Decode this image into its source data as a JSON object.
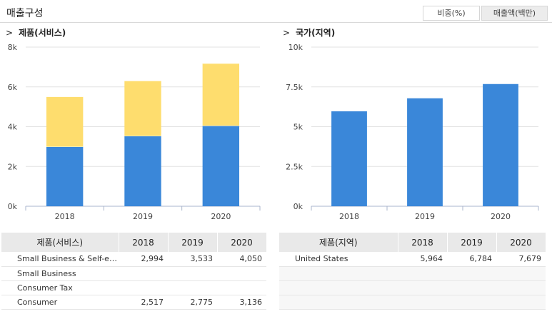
{
  "header": {
    "title": "매출구성",
    "toggle_pct": "비중(%)",
    "toggle_amount": "매출액(백만)"
  },
  "left_section": {
    "title": "제품(서비스)"
  },
  "right_section": {
    "title": "국가(지역)"
  },
  "chevron_glyph": ">",
  "colors": {
    "blue": "#3a87d9",
    "yellow": "#fedd6e",
    "grid": "#e2e2e2",
    "axis": "#aab6cc"
  },
  "chart_data": [
    {
      "type": "bar",
      "stacked": true,
      "categories": [
        "2018",
        "2019",
        "2020"
      ],
      "series": [
        {
          "values": [
            2994,
            3533,
            4050
          ],
          "color": "#3a87d9"
        },
        {
          "values": [
            2517,
            2775,
            3136
          ],
          "color": "#fedd6e"
        }
      ],
      "ylim": [
        0,
        8000
      ],
      "yticks": [
        0,
        2000,
        4000,
        6000,
        8000
      ],
      "ytick_labels": [
        "0k",
        "2k",
        "4k",
        "6k",
        "8k"
      ],
      "grid": true
    },
    {
      "type": "bar",
      "categories": [
        "2018",
        "2019",
        "2020"
      ],
      "series": [
        {
          "values": [
            5964,
            6784,
            7679
          ],
          "color": "#3a87d9"
        }
      ],
      "ylim": [
        0,
        10000
      ],
      "yticks": [
        0,
        2500,
        5000,
        7500,
        10000
      ],
      "ytick_labels": [
        "0k",
        "2.5k",
        "5k",
        "7.5k",
        "10k"
      ],
      "grid": true
    }
  ],
  "left_table": {
    "headers": [
      "제품(서비스)",
      "2018",
      "2019",
      "2020"
    ],
    "rows": [
      [
        "Small Business & Self-e…",
        "2,994",
        "3,533",
        "4,050"
      ],
      [
        "Small Business",
        "",
        "",
        ""
      ],
      [
        "Consumer Tax",
        "",
        "",
        ""
      ],
      [
        "Consumer",
        "2,517",
        "2,775",
        "3,136"
      ]
    ]
  },
  "right_table": {
    "headers": [
      "제품(지역)",
      "2018",
      "2019",
      "2020"
    ],
    "rows": [
      [
        "United States",
        "5,964",
        "6,784",
        "7,679"
      ],
      [
        "",
        "",
        "",
        ""
      ],
      [
        "",
        "",
        "",
        ""
      ],
      [
        "",
        "",
        "",
        ""
      ]
    ]
  }
}
